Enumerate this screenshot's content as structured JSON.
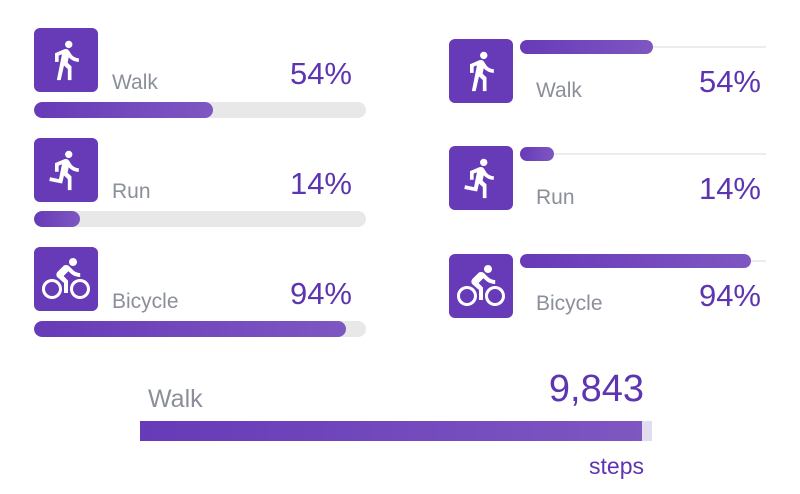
{
  "colors": {
    "accent": "#673AB7",
    "accent_light": "#7E57C2",
    "percent_text": "#5E35B1",
    "label_text": "#8a8f99",
    "track": "#e8e8e8"
  },
  "left_panel": {
    "items": [
      {
        "icon": "walk-icon",
        "label": "Walk",
        "percent": "54%",
        "progress": 0.54
      },
      {
        "icon": "run-icon",
        "label": "Run",
        "percent": "14%",
        "progress": 0.14
      },
      {
        "icon": "bicycle-icon",
        "label": "Bicycle",
        "percent": "94%",
        "progress": 0.94
      }
    ]
  },
  "right_panel": {
    "items": [
      {
        "icon": "walk-icon",
        "label": "Walk",
        "percent": "54%",
        "progress": 0.54
      },
      {
        "icon": "run-icon",
        "label": "Run",
        "percent": "14%",
        "progress": 0.14
      },
      {
        "icon": "bicycle-icon",
        "label": "Bicycle",
        "percent": "94%",
        "progress": 0.94
      }
    ]
  },
  "steps_card": {
    "label": "Walk",
    "value": "9,843",
    "unit": "steps",
    "progress": 0.98
  }
}
